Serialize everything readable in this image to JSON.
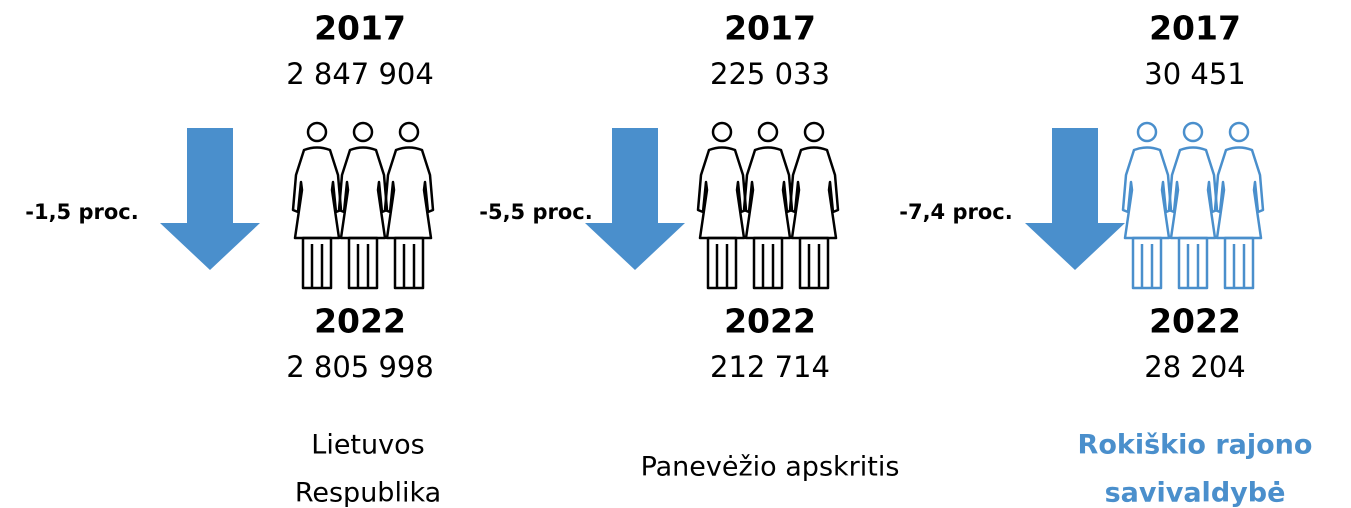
{
  "panels": [
    {
      "year_start": "2017",
      "value_start": "2 847 904",
      "change": "-1,5 proc.",
      "year_end": "2022",
      "value_end": "2 805 998",
      "name": [
        "Lietuvos",
        "Respublika"
      ],
      "color": "#000000"
    },
    {
      "year_start": "2017",
      "value_start": "225 033",
      "change": "-5,5 proc.",
      "year_end": "2022",
      "value_end": "212 714",
      "name": [
        "Panevėžio apskritis"
      ],
      "color": "#000000"
    },
    {
      "year_start": "2017",
      "value_start": "30 451",
      "change": "-7,4 proc.",
      "year_end": "2022",
      "value_end": "28 204",
      "name": [
        "Rokiškio rajono",
        "savivaldybė"
      ],
      "color": "#4a8fcc"
    }
  ]
}
